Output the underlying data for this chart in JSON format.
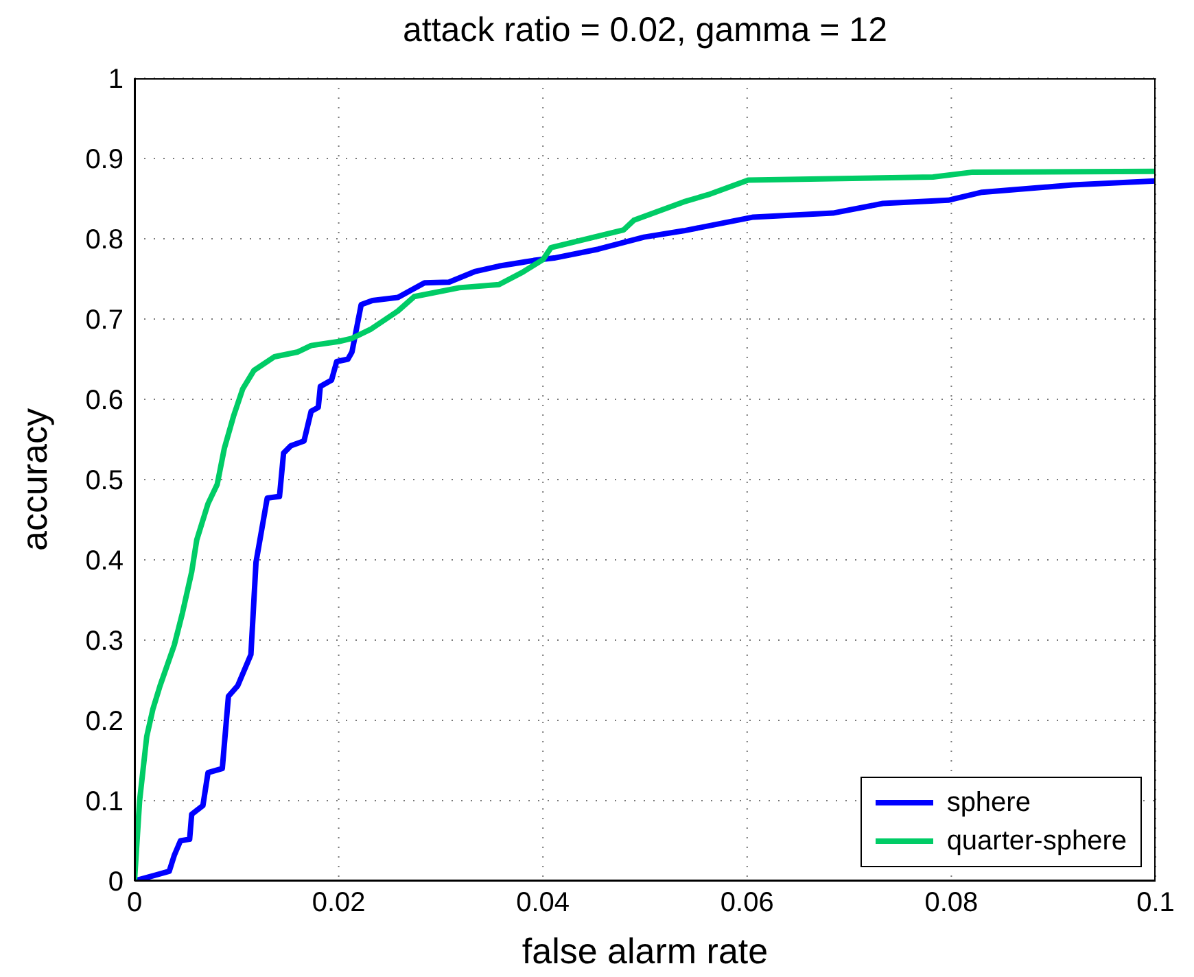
{
  "chart_data": {
    "type": "line",
    "title": "attack ratio = 0.02, gamma = 12",
    "xlabel": "false alarm rate",
    "ylabel": "accuracy",
    "xlim": [
      0,
      0.1
    ],
    "xticks": [
      0,
      0.02,
      0.04,
      0.06,
      0.08,
      0.1
    ],
    "ylim": [
      0,
      1
    ],
    "yticks": [
      0,
      0.1,
      0.2,
      0.3,
      0.4,
      0.5,
      0.6,
      0.7,
      0.8,
      0.9,
      1
    ],
    "grid": true,
    "legend": "bottom right",
    "line_style": "solid",
    "series": [
      {
        "name": "sphere",
        "color": "#0000ff",
        "x": [
          0,
          0.0034,
          0.0039,
          0.0045,
          0.0054,
          0.0056,
          0.0067,
          0.0072,
          0.0086,
          0.0092,
          0.0101,
          0.0114,
          0.0119,
          0.013,
          0.0142,
          0.0146,
          0.0153,
          0.0166,
          0.0173,
          0.018,
          0.0182,
          0.0193,
          0.0198,
          0.0209,
          0.0213,
          0.0222,
          0.0233,
          0.0258,
          0.0284,
          0.0308,
          0.0333,
          0.0357,
          0.0391,
          0.0411,
          0.0454,
          0.0499,
          0.0538,
          0.0606,
          0.0684,
          0.0733,
          0.0797,
          0.083,
          0.0919,
          0.1
        ],
        "values": [
          0,
          0.012,
          0.032,
          0.05,
          0.052,
          0.083,
          0.094,
          0.135,
          0.14,
          0.23,
          0.243,
          0.282,
          0.397,
          0.477,
          0.479,
          0.533,
          0.542,
          0.548,
          0.585,
          0.59,
          0.616,
          0.624,
          0.647,
          0.65,
          0.659,
          0.718,
          0.723,
          0.727,
          0.745,
          0.746,
          0.759,
          0.766,
          0.773,
          0.776,
          0.787,
          0.802,
          0.81,
          0.827,
          0.832,
          0.844,
          0.848,
          0.858,
          0.867,
          0.872
        ]
      },
      {
        "name": "quarter-sphere",
        "color": "#00cc66",
        "x": [
          0,
          0.0005,
          0.0012,
          0.0018,
          0.0025,
          0.0039,
          0.0047,
          0.0056,
          0.0061,
          0.0072,
          0.0081,
          0.0088,
          0.0097,
          0.0106,
          0.0117,
          0.0137,
          0.016,
          0.0173,
          0.02,
          0.0213,
          0.0231,
          0.0258,
          0.0274,
          0.0318,
          0.0357,
          0.0381,
          0.04,
          0.0408,
          0.045,
          0.0479,
          0.0489,
          0.0538,
          0.0562,
          0.0601,
          0.0782,
          0.0821,
          0.1
        ],
        "values": [
          0,
          0.1,
          0.18,
          0.214,
          0.243,
          0.294,
          0.334,
          0.385,
          0.425,
          0.47,
          0.494,
          0.539,
          0.579,
          0.613,
          0.636,
          0.653,
          0.659,
          0.667,
          0.672,
          0.676,
          0.687,
          0.71,
          0.728,
          0.739,
          0.743,
          0.759,
          0.774,
          0.789,
          0.802,
          0.811,
          0.823,
          0.846,
          0.855,
          0.873,
          0.877,
          0.883,
          0.884
        ]
      }
    ]
  }
}
